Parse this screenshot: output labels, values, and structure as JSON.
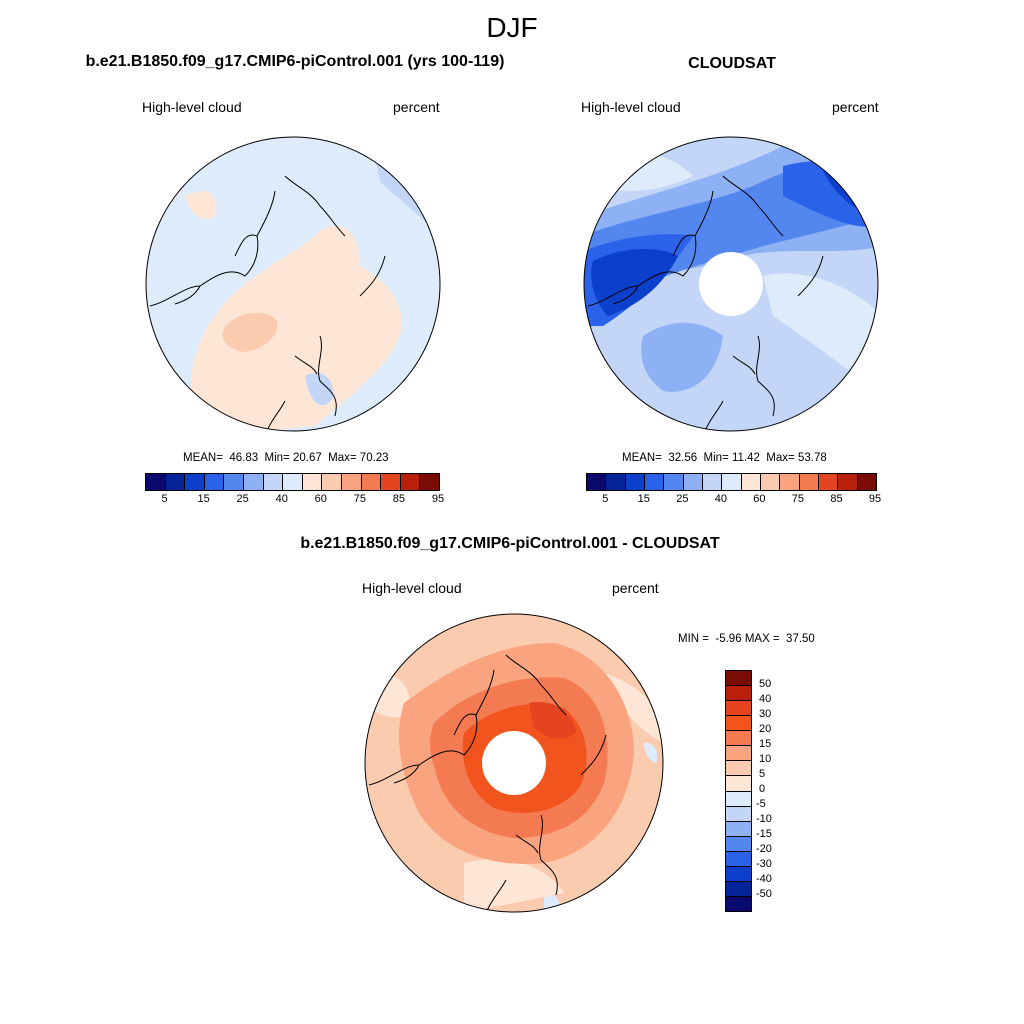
{
  "figure": {
    "title": "DJF"
  },
  "chart_data": [
    {
      "type": "heatmap",
      "title": "b.e21.B1850.f09_g17.CMIP6-piControl.001 (yrs 100-119)",
      "left_string": "High-level cloud",
      "right_string": "percent",
      "projection": "north polar stereographic",
      "stats": {
        "mean_label": "MEAN=",
        "mean": "46.83",
        "min_label": "Min=",
        "min": "20.67",
        "max_label": "Max=",
        "max": "70.23"
      },
      "colorbar": {
        "orientation": "horizontal",
        "tick_labels": [
          "5",
          "15",
          "25",
          "40",
          "60",
          "75",
          "85",
          "95"
        ],
        "colors": [
          "#0a0a6e",
          "#06249a",
          "#0b3fcc",
          "#2a62ea",
          "#5486f0",
          "#8eb0f4",
          "#c3d6f8",
          "#deebfa",
          "#fde6d6",
          "#fbcbb0",
          "#f9a47f",
          "#f47a51",
          "#e4441f",
          "#b8200b",
          "#7a0c05"
        ]
      }
    },
    {
      "type": "heatmap",
      "title": "CLOUDSAT",
      "left_string": "High-level cloud",
      "right_string": "percent",
      "projection": "north polar stereographic",
      "stats": {
        "mean_label": "MEAN=",
        "mean": "32.56",
        "min_label": "Min=",
        "min": "11.42",
        "max_label": "Max=",
        "max": "53.78"
      },
      "colorbar": {
        "orientation": "horizontal",
        "tick_labels": [
          "5",
          "15",
          "25",
          "40",
          "60",
          "75",
          "85",
          "95"
        ],
        "colors": [
          "#0a0a6e",
          "#06249a",
          "#0b3fcc",
          "#2a62ea",
          "#5486f0",
          "#8eb0f4",
          "#c3d6f8",
          "#deebfa",
          "#fde6d6",
          "#fbcbb0",
          "#f9a47f",
          "#f47a51",
          "#e4441f",
          "#b8200b",
          "#7a0c05"
        ]
      }
    },
    {
      "type": "heatmap",
      "title": "b.e21.B1850.f09_g17.CMIP6-piControl.001 - CLOUDSAT",
      "left_string": "High-level cloud",
      "right_string": "percent",
      "projection": "north polar stereographic",
      "stats": {
        "min_label": "MIN =",
        "min": "-5.96",
        "max_label": "MAX =",
        "max": "37.50"
      },
      "colorbar": {
        "orientation": "vertical",
        "tick_labels": [
          "50",
          "40",
          "30",
          "20",
          "15",
          "10",
          "5",
          "0",
          "-5",
          "-10",
          "-15",
          "-20",
          "-30",
          "-40",
          "-50"
        ],
        "colors": [
          "#7a0c05",
          "#b8200b",
          "#e4441f",
          "#f2541e",
          "#f47a51",
          "#f9a47f",
          "#fbcbb0",
          "#fde6d6",
          "#deebfa",
          "#c3d6f8",
          "#8eb0f4",
          "#5486f0",
          "#2a62ea",
          "#0b3fcc",
          "#06249a",
          "#0a0a6e"
        ]
      }
    }
  ]
}
